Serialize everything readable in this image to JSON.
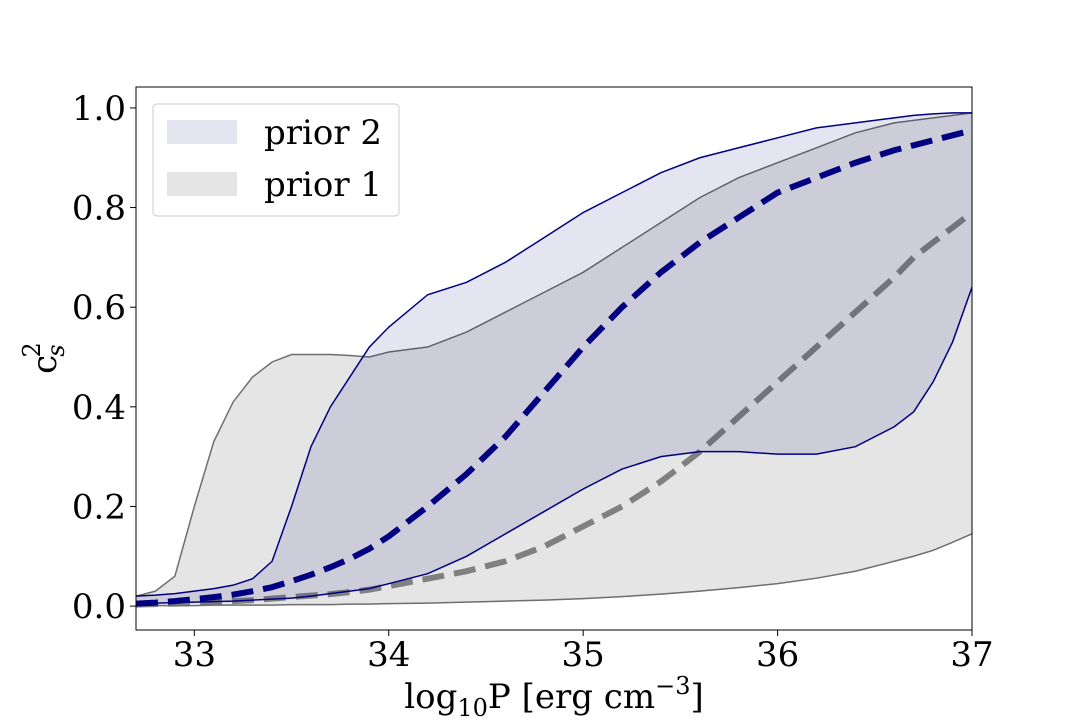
{
  "chart_data": {
    "type": "band",
    "xlabel": [
      "log",
      "10",
      "P [erg cm",
      "−3",
      "]"
    ],
    "ylabel": [
      "c",
      "s",
      "2"
    ],
    "xlim": [
      32.7,
      37
    ],
    "ylim": [
      -0.048,
      1.042
    ],
    "xticks": [
      33,
      34,
      35,
      36,
      37
    ],
    "yticks": [
      {
        "value": 0,
        "label": "0.0"
      },
      0.2,
      0.4,
      0.6,
      0.8,
      {
        "value": 1,
        "label": "1.0"
      }
    ],
    "legend": "upper left",
    "x": [
      32.7,
      32.8,
      32.9,
      33.0,
      33.1,
      33.2,
      33.3,
      33.4,
      33.5,
      33.6,
      33.7,
      33.8,
      33.9,
      34.0,
      34.2,
      34.4,
      34.6,
      34.8,
      35.0,
      35.2,
      35.4,
      35.6,
      35.8,
      36.0,
      36.2,
      36.4,
      36.6,
      36.7,
      36.8,
      36.9,
      37.0
    ],
    "series": [
      {
        "name": "prior 2",
        "color": "#000080",
        "fill": "#000080",
        "fill_opacity": 0.1,
        "upper": [
          0.02,
          0.022,
          0.025,
          0.03,
          0.035,
          0.042,
          0.055,
          0.09,
          0.2,
          0.32,
          0.4,
          0.46,
          0.52,
          0.56,
          0.625,
          0.65,
          0.69,
          0.74,
          0.79,
          0.83,
          0.87,
          0.9,
          0.92,
          0.94,
          0.96,
          0.97,
          0.98,
          0.985,
          0.988,
          0.99,
          0.99
        ],
        "lower": [
          0.005,
          0.006,
          0.007,
          0.008,
          0.009,
          0.01,
          0.012,
          0.014,
          0.016,
          0.02,
          0.025,
          0.03,
          0.035,
          0.045,
          0.065,
          0.1,
          0.145,
          0.19,
          0.235,
          0.275,
          0.3,
          0.31,
          0.31,
          0.305,
          0.305,
          0.32,
          0.36,
          0.39,
          0.45,
          0.53,
          0.64
        ],
        "median": [
          0.005,
          0.007,
          0.01,
          0.014,
          0.018,
          0.023,
          0.03,
          0.038,
          0.05,
          0.063,
          0.078,
          0.095,
          0.115,
          0.14,
          0.2,
          0.265,
          0.34,
          0.43,
          0.52,
          0.6,
          0.67,
          0.73,
          0.78,
          0.83,
          0.86,
          0.89,
          0.915,
          0.925,
          0.935,
          0.945,
          0.955
        ]
      },
      {
        "name": "prior 1",
        "color": "#6e6e6e",
        "fill": "#bfbfbf",
        "fill_opacity": 0.4,
        "upper": [
          0.02,
          0.03,
          0.06,
          0.2,
          0.33,
          0.41,
          0.46,
          0.49,
          0.505,
          0.505,
          0.505,
          0.503,
          0.5,
          0.51,
          0.52,
          0.55,
          0.59,
          0.63,
          0.67,
          0.72,
          0.77,
          0.82,
          0.86,
          0.89,
          0.92,
          0.95,
          0.97,
          0.975,
          0.98,
          0.985,
          0.99
        ],
        "lower": [
          0.001,
          0.001,
          0.001,
          0.001,
          0.002,
          0.002,
          0.002,
          0.002,
          0.003,
          0.003,
          0.003,
          0.004,
          0.004,
          0.005,
          0.006,
          0.008,
          0.01,
          0.012,
          0.015,
          0.019,
          0.024,
          0.03,
          0.037,
          0.045,
          0.056,
          0.07,
          0.09,
          0.1,
          0.112,
          0.128,
          0.145
        ],
        "median": [
          0.003,
          0.004,
          0.005,
          0.006,
          0.008,
          0.01,
          0.012,
          0.015,
          0.018,
          0.021,
          0.024,
          0.028,
          0.033,
          0.04,
          0.055,
          0.07,
          0.09,
          0.12,
          0.16,
          0.2,
          0.25,
          0.31,
          0.38,
          0.45,
          0.52,
          0.59,
          0.66,
          0.7,
          0.73,
          0.76,
          0.79
        ]
      }
    ]
  }
}
